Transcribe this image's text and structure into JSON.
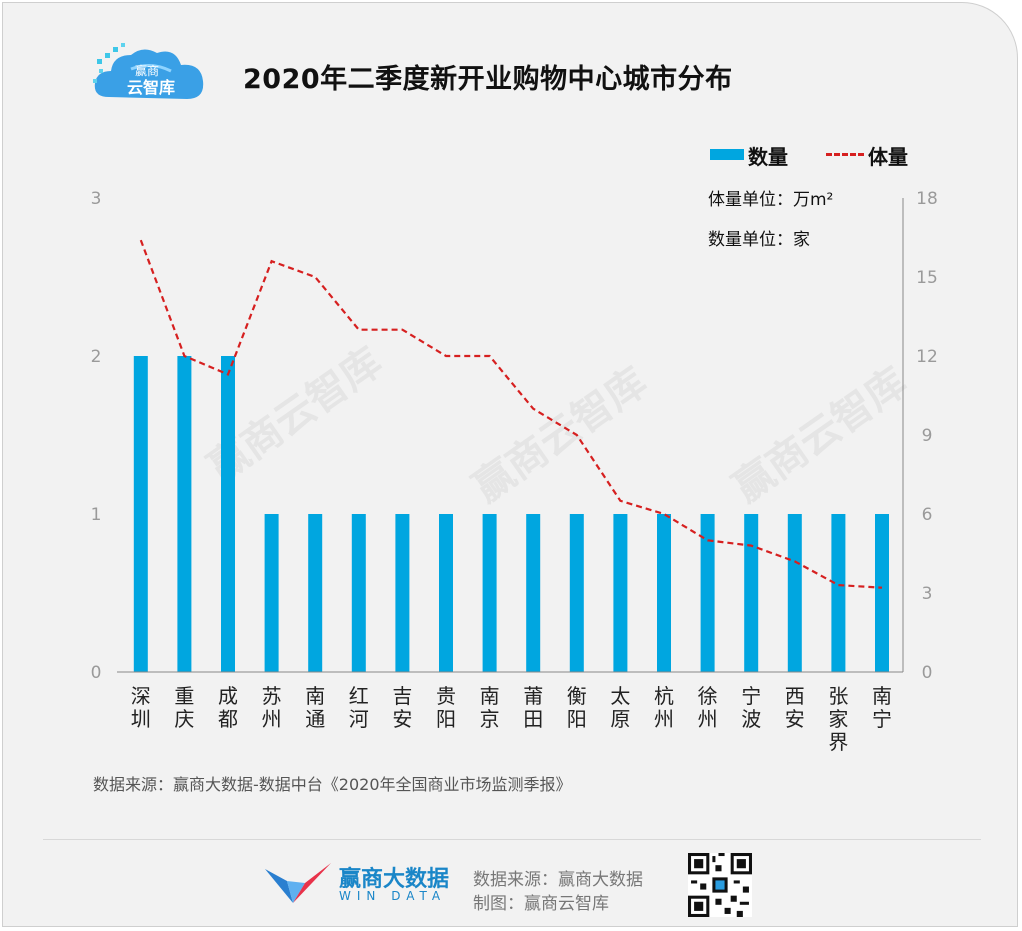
{
  "logo": {
    "line1": "赢商",
    "line2": "云智库"
  },
  "title": "2020年二季度新开业购物中心城市分布",
  "legend": {
    "bar": "数量",
    "line": "体量"
  },
  "units": {
    "volume": "体量单位：万m²",
    "count": "数量单位：家"
  },
  "watermark": "赢商云智库",
  "colors": {
    "bar": "#00a6e0",
    "line": "#d62020",
    "axis": "#888888",
    "background": "#f2f2f2"
  },
  "chart_data": {
    "type": "bar",
    "title": "2020年二季度新开业购物中心城市分布",
    "categories": [
      "深圳",
      "重庆",
      "成都",
      "苏州",
      "南通",
      "红河",
      "吉安",
      "贵阳",
      "南京",
      "莆田",
      "衡阳",
      "太原",
      "杭州",
      "徐州",
      "宁波",
      "西安",
      "张家界",
      "南宁"
    ],
    "series": [
      {
        "name": "数量",
        "type": "bar",
        "axis": "left",
        "values": [
          2,
          2,
          2,
          1,
          1,
          1,
          1,
          1,
          1,
          1,
          1,
          1,
          1,
          1,
          1,
          1,
          1,
          1
        ]
      },
      {
        "name": "体量",
        "type": "line",
        "axis": "right",
        "values": [
          16.4,
          12.0,
          11.3,
          15.6,
          15.0,
          13.0,
          13.0,
          12.0,
          12.0,
          10.0,
          9.0,
          6.5,
          6.0,
          5.0,
          4.8,
          4.2,
          3.3,
          3.2
        ]
      }
    ],
    "y_left": {
      "ylim": [
        0,
        3
      ],
      "ticks": [
        "0",
        "1",
        "2",
        "3"
      ]
    },
    "y_right": {
      "ylim": [
        0,
        18
      ],
      "ticks": [
        "0",
        "3",
        "6",
        "9",
        "12",
        "15",
        "18"
      ]
    },
    "grid": false
  },
  "source": "数据来源：赢商大数据-数据中台《2020年全国商业市场监测季报》",
  "footer": {
    "brand_name": "赢商大数据",
    "brand_sub": "WIN DATA",
    "source": "数据来源：赢商大数据",
    "made_by": "制图：赢商云智库"
  }
}
